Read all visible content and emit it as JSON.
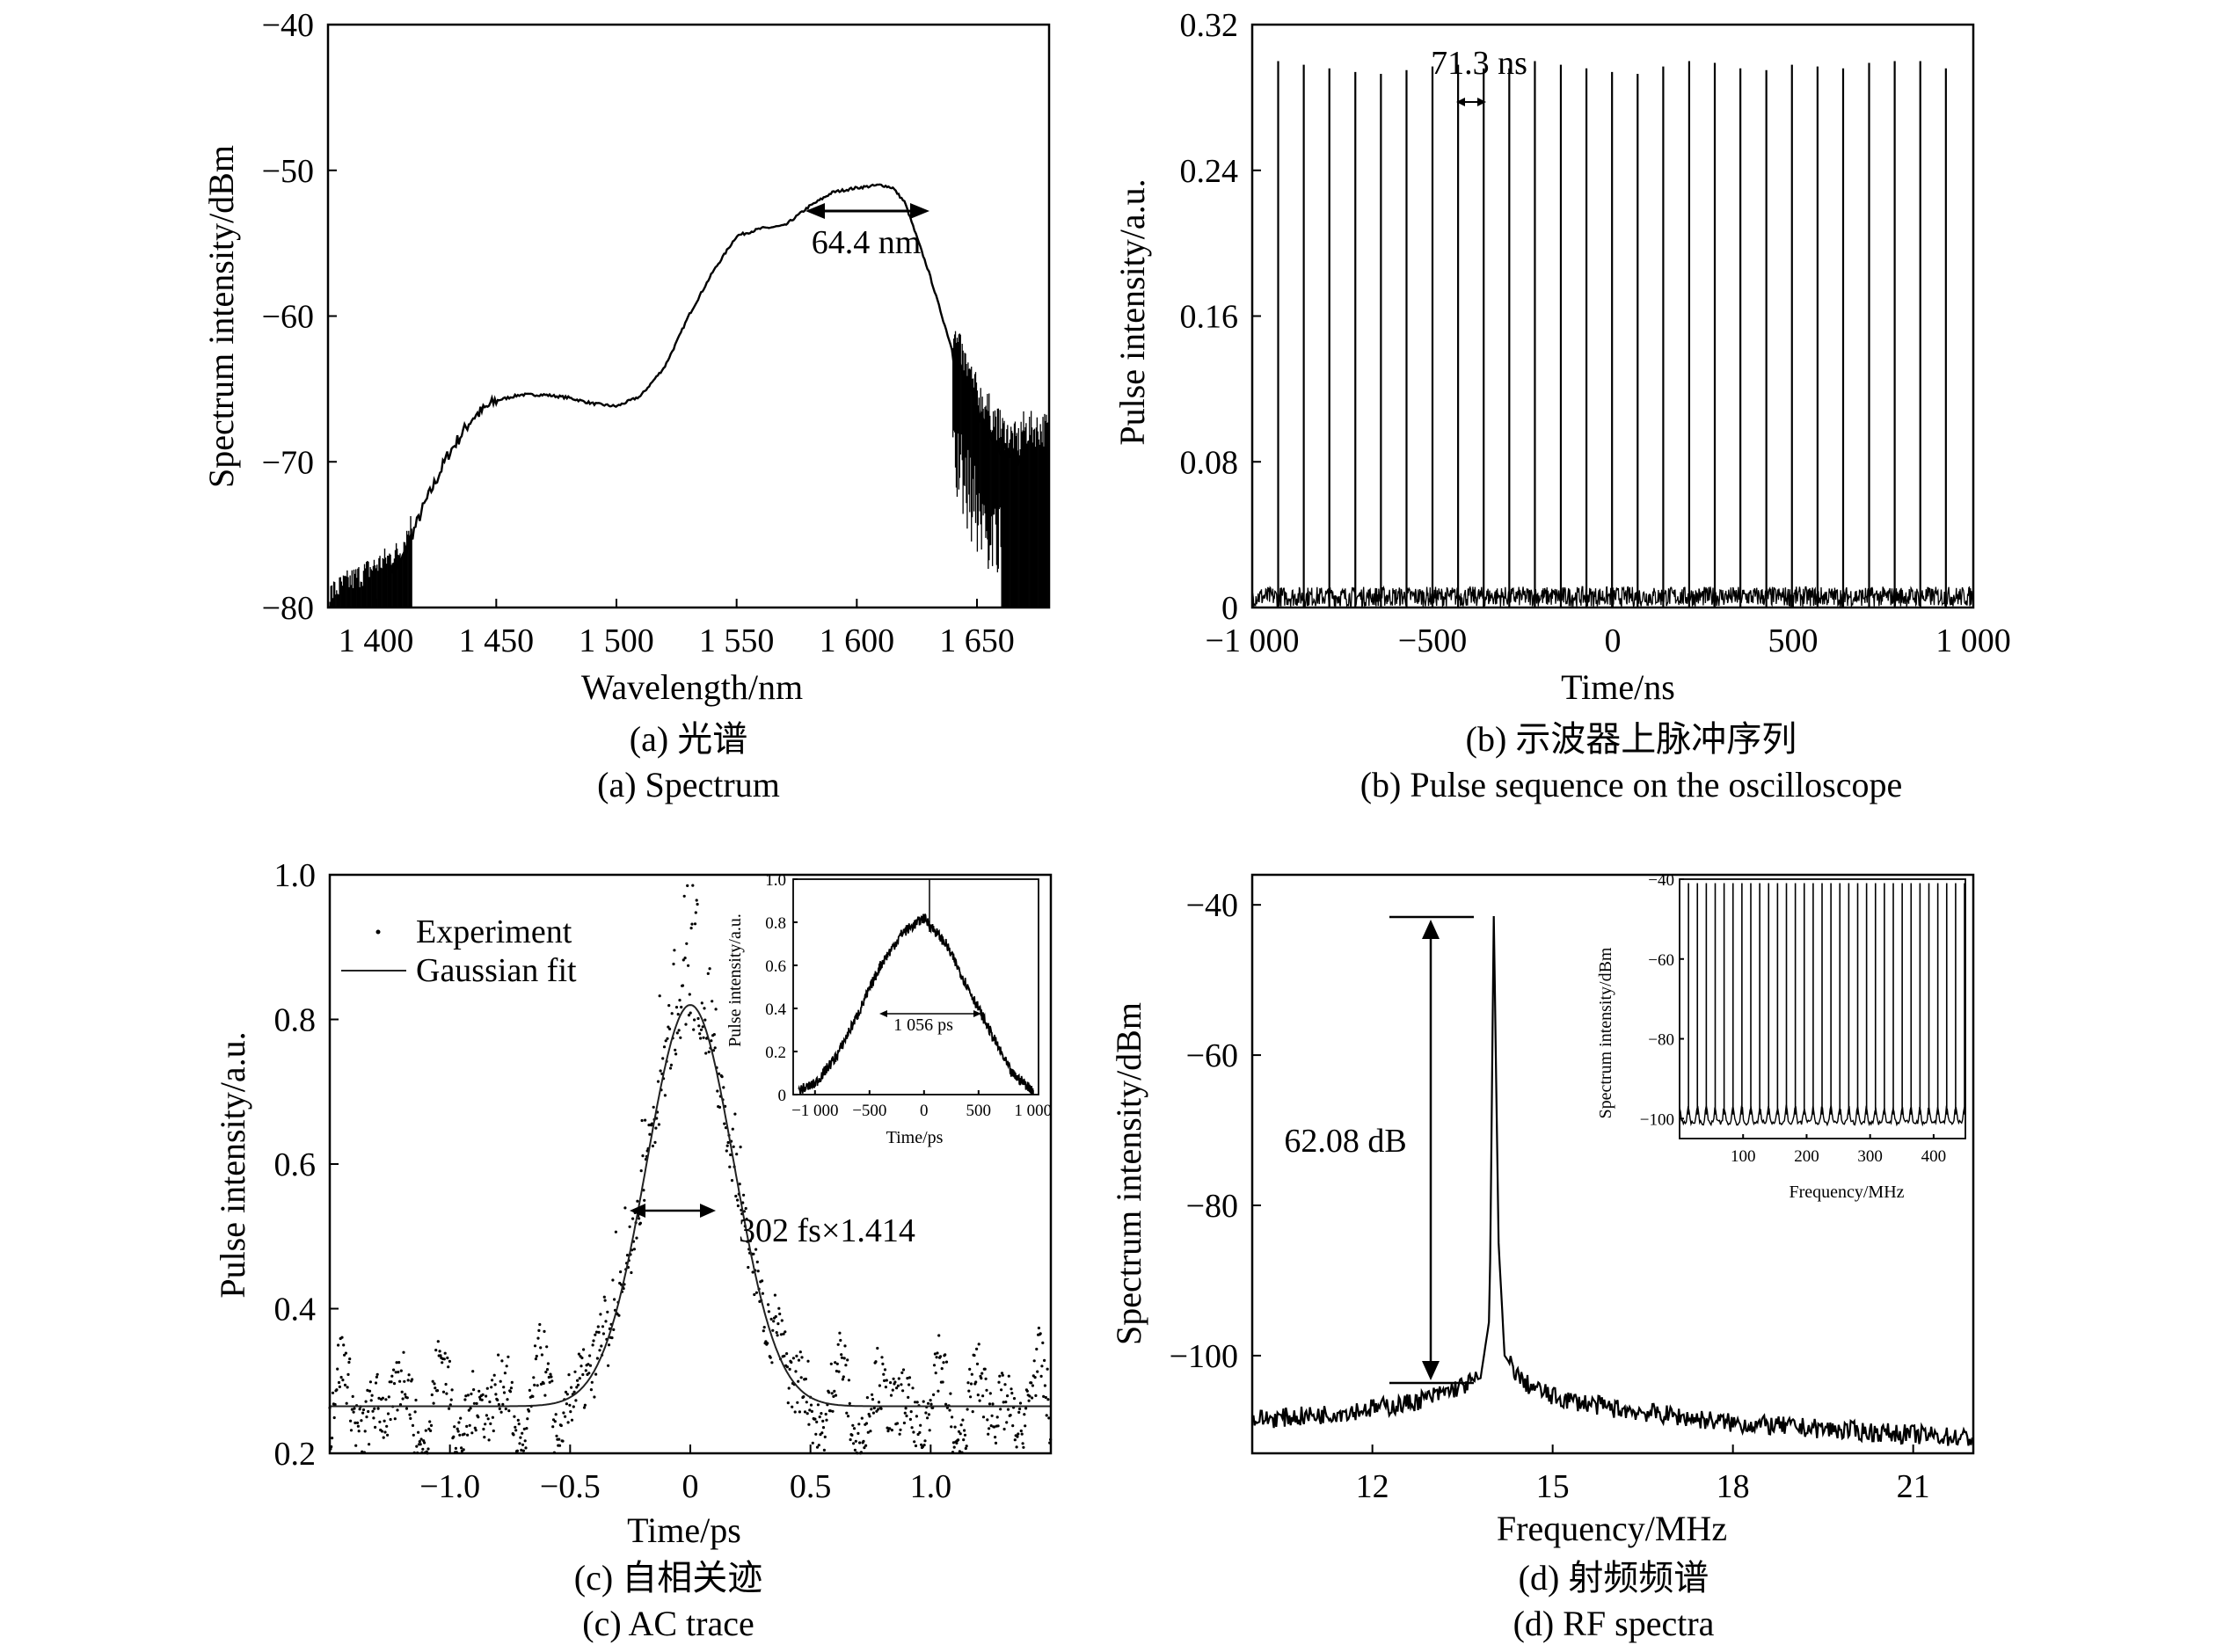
{
  "chart_data": [
    {
      "type": "line",
      "panel": "a",
      "caption_cn": "(a) 光谱",
      "caption_en": "(a) Spectrum",
      "xlabel": "Wavelength/nm",
      "ylabel": "Spectrum intensity/dBm",
      "xlim": [
        1380,
        1680
      ],
      "ylim": [
        -80,
        -40
      ],
      "xticks": [
        1400,
        1450,
        1500,
        1550,
        1600,
        1650
      ],
      "xtick_labels": [
        "1 400",
        "1 450",
        "1 500",
        "1 550",
        "1 600",
        "1 650"
      ],
      "yticks": [
        -80,
        -70,
        -60,
        -50,
        -40
      ],
      "ytick_labels": [
        "−80",
        "−70",
        "−60",
        "−50",
        "−40"
      ],
      "annotation": {
        "text": "64.4 nm",
        "x_start": 1580,
        "x_end": 1630,
        "y": -53.4
      },
      "series": [
        {
          "x": [
            1380,
            1390,
            1400,
            1410,
            1415,
            1420,
            1430,
            1440,
            1450,
            1460,
            1470,
            1480,
            1490,
            1500,
            1510,
            1520,
            1525,
            1530,
            1535,
            1540,
            1550,
            1560,
            1570,
            1580,
            1590,
            1600,
            1610,
            1615,
            1620,
            1630,
            1640,
            1650,
            1660,
            1668
          ],
          "y": [
            -80,
            -79,
            -78,
            -77,
            -75,
            -73,
            -69.5,
            -67,
            -65.8,
            -65.4,
            -65.4,
            -65.6,
            -66,
            -66.2,
            -65.5,
            -63.5,
            -61.8,
            -60,
            -58.5,
            -57,
            -54.5,
            -54,
            -53.8,
            -52.5,
            -51.5,
            -51.2,
            -51.0,
            -51.2,
            -52.2,
            -57,
            -62.5,
            -66.5,
            -69,
            -70
          ]
        }
      ]
    },
    {
      "type": "line",
      "panel": "b",
      "caption_cn": "(b) 示波器上脉冲序列",
      "caption_en": "(b) Pulse sequence on the oscilloscope",
      "xlabel": "Time/ns",
      "ylabel": "Pulse intensity/a.u.",
      "xlim": [
        -1000,
        1000
      ],
      "ylim": [
        0,
        0.32
      ],
      "xticks": [
        -1000,
        -500,
        0,
        500,
        1000
      ],
      "xtick_labels": [
        "−1 000",
        "−500",
        "0",
        "500",
        "1 000"
      ],
      "yticks": [
        0,
        0.08,
        0.16,
        0.24,
        0.32
      ],
      "ytick_labels": [
        "0",
        "0.08",
        "0.16",
        "0.24",
        "0.32"
      ],
      "annotation": {
        "text": "71.3 ns",
        "x_start": -430,
        "x_end": -359
      },
      "pulse_period_ns": 71.3,
      "pulse_times": [
        -928,
        -857,
        -786,
        -714,
        -643,
        -572,
        -500,
        -429,
        -358,
        -287,
        -216,
        -144,
        -73,
        -2,
        69,
        140,
        212,
        283,
        354,
        426,
        497,
        568,
        639,
        711,
        782,
        853,
        924
      ],
      "pulse_heights": [
        0.3,
        0.298,
        0.296,
        0.294,
        0.293,
        0.295,
        0.297,
        0.298,
        0.296,
        0.296,
        0.3,
        0.298,
        0.296,
        0.294,
        0.293,
        0.297,
        0.3,
        0.299,
        0.296,
        0.295,
        0.298,
        0.297,
        0.296,
        0.299,
        0.3,
        0.3,
        0.296
      ]
    },
    {
      "type": "scatter",
      "panel": "c",
      "caption_cn": "(c) 自相关迹",
      "caption_en": "(c) AC trace",
      "xlabel": "Time/ps",
      "ylabel": "Pulse intensity/a.u.",
      "xlim": [
        -1.5,
        1.5
      ],
      "ylim": [
        0.2,
        1.0
      ],
      "xticks": [
        -1.0,
        -0.5,
        0,
        0.5,
        1.0
      ],
      "xtick_labels": [
        "−1.0",
        "−0.5",
        "0",
        "0.5",
        "1.0"
      ],
      "yticks": [
        0.2,
        0.4,
        0.6,
        0.8,
        1.0
      ],
      "ytick_labels": [
        "0.2",
        "0.4",
        "0.6",
        "0.8",
        "1.0"
      ],
      "legend": [
        "Experiment",
        "Gaussian fit"
      ],
      "annotation": {
        "text": "302 fs×1.414",
        "x_start": -0.17,
        "x_end": 0.17,
        "y": 0.54
      },
      "gaussian_fit": {
        "baseline": 0.265,
        "peak": 0.82,
        "center": 0,
        "fwhm_ps": 0.427
      },
      "inset": {
        "xlabel": "Time/ps",
        "ylabel": "Pulse intensity/a.u.",
        "xlim": [
          -1200,
          1050
        ],
        "ylim": [
          0,
          1.0
        ],
        "xticks": [
          -1000,
          -500,
          0,
          500,
          1000
        ],
        "xtick_labels": [
          "−1 000",
          "−500",
          "0",
          "500",
          "1 000"
        ],
        "yticks": [
          0,
          0.2,
          0.4,
          0.6,
          0.8,
          1.0
        ],
        "ytick_labels": [
          "0",
          "0.2",
          "0.4",
          "0.6",
          "0.8",
          "1.0"
        ],
        "annotation": {
          "text": "1 056 ps",
          "x_start": -300,
          "x_end": 480,
          "y": 0.38
        },
        "x": [
          -1150,
          -1000,
          -800,
          -600,
          -400,
          -200,
          0,
          200,
          400,
          600,
          800,
          1000
        ],
        "y": [
          0.02,
          0.05,
          0.18,
          0.38,
          0.6,
          0.75,
          0.82,
          0.7,
          0.5,
          0.3,
          0.1,
          0.02
        ]
      }
    },
    {
      "type": "line",
      "panel": "d",
      "caption_cn": "(d) 射频频谱",
      "caption_en": "(d) RF spectra",
      "xlabel": "Frequency/MHz",
      "ylabel": "Spectrum intensity/dBm",
      "xlim": [
        10,
        22
      ],
      "ylim": [
        -113,
        -36
      ],
      "xticks": [
        12,
        15,
        18,
        21
      ],
      "xtick_labels": [
        "12",
        "15",
        "18",
        "21"
      ],
      "yticks": [
        -100,
        -80,
        -60,
        -40
      ],
      "ytick_labels": [
        "−100",
        "−80",
        "−60",
        "−40"
      ],
      "annotation": {
        "text": "62.08 dB",
        "y_top": -41.5,
        "y_bottom": -103.6
      },
      "series": [
        {
          "x": [
            10,
            11,
            12,
            12.5,
            13,
            13.5,
            13.8,
            13.95,
            14.02,
            14.1,
            14.2,
            14.5,
            15,
            16,
            17,
            18,
            19,
            20,
            21,
            22
          ],
          "y": [
            -108.5,
            -108,
            -107,
            -106.5,
            -105.5,
            -104,
            -103,
            -95,
            -41.5,
            -85,
            -100,
            -103.5,
            -105.5,
            -107,
            -108,
            -109,
            -109.5,
            -110,
            -110.5,
            -111
          ]
        }
      ],
      "inset": {
        "xlabel": "Frequency/MHz",
        "ylabel": "Spectrum intensity/dBm",
        "xlim": [
          0,
          450
        ],
        "ylim": [
          -105,
          -40
        ],
        "xticks": [
          100,
          200,
          300,
          400
        ],
        "xtick_labels": [
          "100",
          "200",
          "300",
          "400"
        ],
        "yticks": [
          -100,
          -80,
          -60,
          -40
        ],
        "ytick_labels": [
          "−100",
          "−80",
          "−60",
          "−40"
        ],
        "comb_spacing_mhz": 14.02,
        "comb_peak_db": -41,
        "noise_floor_db": -100
      }
    }
  ]
}
